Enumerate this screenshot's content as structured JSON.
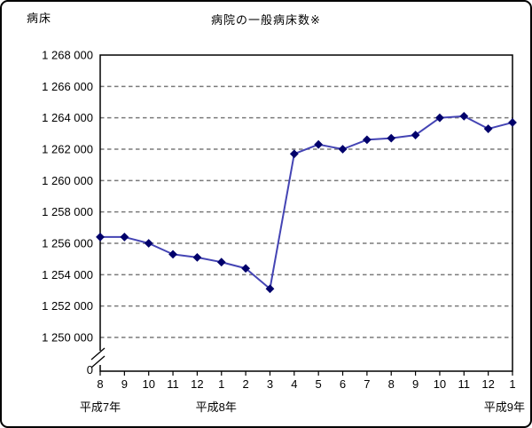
{
  "chart_data": {
    "type": "line",
    "title": "病院の一般病床数※",
    "ylabel": "病床",
    "categories": [
      "8",
      "9",
      "10",
      "11",
      "12",
      "1",
      "2",
      "3",
      "4",
      "5",
      "6",
      "7",
      "8",
      "9",
      "10",
      "11",
      "12",
      "1"
    ],
    "era_labels": [
      {
        "text": "平成7年",
        "index": 0
      },
      {
        "text": "平成8年",
        "index": 5
      },
      {
        "text": "平成9年",
        "index": 17
      }
    ],
    "values": [
      1256400,
      1256400,
      1256000,
      1255300,
      1255100,
      1254800,
      1254400,
      1253100,
      1261700,
      1262300,
      1262000,
      1262600,
      1262700,
      1262900,
      1264000,
      1264100,
      1263300,
      1263700
    ],
    "y_ticks": [
      {
        "value": 1268000,
        "label": "1 268 000"
      },
      {
        "value": 1266000,
        "label": "1 266 000"
      },
      {
        "value": 1264000,
        "label": "1 264 000"
      },
      {
        "value": 1262000,
        "label": "1 262 000"
      },
      {
        "value": 1260000,
        "label": "1 260 000"
      },
      {
        "value": 1258000,
        "label": "1 258 000"
      },
      {
        "value": 1256000,
        "label": "1 256 000"
      },
      {
        "value": 1254000,
        "label": "1 254 000"
      },
      {
        "value": 1252000,
        "label": "1 252 000"
      },
      {
        "value": 1250000,
        "label": "1 250 000"
      }
    ],
    "zero_tick_label": "0",
    "axis_break": true,
    "ylim": [
      1250000,
      1268000
    ],
    "grid": "horizontal-dashed",
    "legend": "none",
    "marker": "diamond",
    "colors": {
      "line": "#4444b4",
      "marker": "#00006b",
      "grid": "#7a7a7a",
      "axis": "#000000",
      "text": "#000000",
      "background": "#ffffff"
    }
  }
}
